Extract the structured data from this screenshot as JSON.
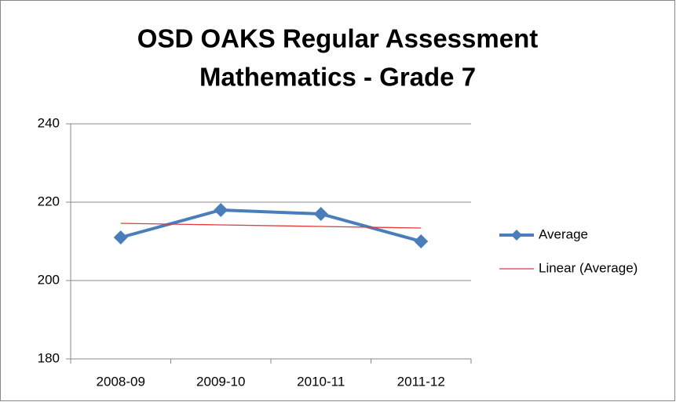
{
  "chart_data": {
    "type": "line",
    "title": [
      "OSD OAKS Regular Assessment",
      "Mathematics - Grade 7"
    ],
    "categories": [
      "2008-09",
      "2009-10",
      "2010-11",
      "2011-12"
    ],
    "series": [
      {
        "name": "Average",
        "color": "#4a7ebb",
        "values": [
          211,
          218,
          217,
          210
        ],
        "marker": "diamond"
      },
      {
        "name": "Linear (Average)",
        "color": "#e03a3a",
        "values": [
          214.6,
          214.2,
          213.8,
          213.4
        ]
      }
    ],
    "ylim": [
      180,
      240
    ],
    "yticks": [
      180,
      200,
      220,
      240
    ],
    "grid": true,
    "legend": "right"
  }
}
